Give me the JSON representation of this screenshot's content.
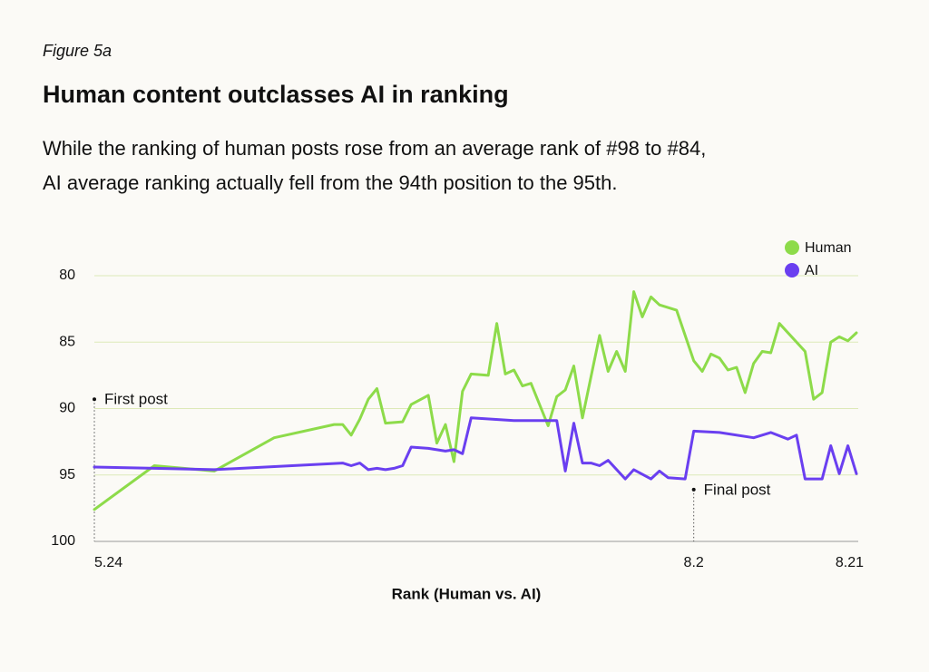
{
  "figure_label": "Figure 5a",
  "chart_data": {
    "type": "line",
    "title": "Human content outclasses AI in ranking",
    "subtitle": [
      "While the ranking of human posts rose from an average rank of #98 to #84,",
      "AI average ranking actually fell from the 94th position to the 95th."
    ],
    "x_label": "Rank (Human vs. AI)",
    "xlim": [
      "5.24",
      "8.21"
    ],
    "xticks": [
      "5.24",
      "8.2",
      "8.21"
    ],
    "ylim": [
      100,
      80
    ],
    "yticks": [
      80,
      85,
      90,
      95,
      100
    ],
    "grid": true,
    "legend": "top-right",
    "annotations": [
      {
        "text": "First post",
        "x": "5.24",
        "y": 89.3
      },
      {
        "text": "Final post",
        "x": "8.2",
        "y": 96.1
      }
    ],
    "series": [
      {
        "name": "Human",
        "color": "#8ddb4a",
        "x": [
          "5.24",
          "5.31",
          "6.7",
          "6.14",
          "6.21",
          "6.22",
          "6.23",
          "6.24",
          "6.25",
          "6.26",
          "6.27",
          "6.29",
          "6.30",
          "7.2",
          "7.3",
          "7.4",
          "7.5",
          "7.6",
          "7.7",
          "7.9",
          "7.10",
          "7.11",
          "7.12",
          "7.13",
          "7.14",
          "7.16",
          "7.17",
          "7.18",
          "7.19",
          "7.20",
          "7.22",
          "7.23",
          "7.24",
          "7.25",
          "7.26",
          "7.27",
          "7.28",
          "7.29",
          "7.31",
          "8.2",
          "8.3",
          "8.4",
          "8.5",
          "8.6",
          "8.7",
          "8.8",
          "8.9",
          "8.10",
          "8.11",
          "8.12",
          "8.15",
          "8.16",
          "8.17",
          "8.18",
          "8.19",
          "8.20",
          "8.21"
        ],
        "values": [
          97.6,
          94.3,
          94.7,
          92.2,
          91.2,
          91.2,
          92.0,
          90.8,
          89.3,
          88.5,
          91.1,
          91.0,
          89.7,
          89.0,
          92.6,
          91.2,
          94.0,
          88.7,
          87.4,
          87.5,
          83.6,
          87.4,
          87.1,
          88.3,
          88.1,
          91.3,
          89.1,
          88.6,
          86.8,
          90.7,
          84.5,
          87.2,
          85.7,
          87.2,
          81.2,
          83.1,
          81.6,
          82.2,
          82.6,
          86.4,
          87.2,
          85.9,
          86.2,
          87.1,
          86.9,
          88.8,
          86.6,
          85.7,
          85.8,
          83.6,
          85.7,
          89.3,
          88.8,
          85.0,
          84.6,
          84.9,
          84.3
        ]
      },
      {
        "name": "AI",
        "color": "#6a3ff0",
        "x": [
          "5.24",
          "5.31",
          "6.7",
          "6.22",
          "6.23",
          "6.24",
          "6.25",
          "6.26",
          "6.27",
          "6.28",
          "6.29",
          "6.30",
          "7.2",
          "7.4",
          "7.5",
          "7.6",
          "7.7",
          "7.12",
          "7.17",
          "7.18",
          "7.19",
          "7.20",
          "7.21",
          "7.22",
          "7.23",
          "7.25",
          "7.26",
          "7.28",
          "7.29",
          "7.30",
          "8.1",
          "8.2",
          "8.5",
          "8.9",
          "8.11",
          "8.13",
          "8.14",
          "8.15",
          "8.17",
          "8.18",
          "8.19",
          "8.20",
          "8.21"
        ],
        "values": [
          94.4,
          94.5,
          94.6,
          94.1,
          94.3,
          94.1,
          94.6,
          94.5,
          94.6,
          94.5,
          94.3,
          92.9,
          93.0,
          93.2,
          93.1,
          93.4,
          90.7,
          90.9,
          90.9,
          94.7,
          91.1,
          94.1,
          94.1,
          94.3,
          93.9,
          95.3,
          94.6,
          95.3,
          94.7,
          95.2,
          95.3,
          91.7,
          91.8,
          92.2,
          91.8,
          92.3,
          92.0,
          95.3,
          95.3,
          92.8,
          94.9,
          92.8,
          94.9
        ]
      }
    ]
  }
}
